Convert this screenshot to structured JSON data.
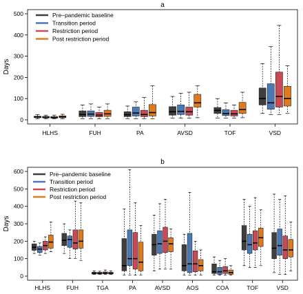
{
  "chart_data": [
    {
      "type": "box",
      "title": "a",
      "xlabel": "",
      "ylabel": "Days",
      "ylim": [
        0,
        500
      ],
      "yticks": [
        0,
        100,
        200,
        300,
        400,
        500
      ],
      "groups": [
        "HLHS",
        "FUH",
        "PA",
        "AVSD",
        "TOF",
        "VSD"
      ],
      "legend_position": "top-left",
      "series": [
        {
          "name": "Pre–pandemic baseline",
          "color": "#3f3f3f",
          "boxes": [
            {
              "min": 5,
              "q1": 10,
              "median": 13,
              "q3": 17,
              "max": 24
            },
            {
              "min": 5,
              "q1": 15,
              "median": 25,
              "q3": 42,
              "max": 70
            },
            {
              "min": 5,
              "q1": 15,
              "median": 24,
              "q3": 38,
              "max": 65
            },
            {
              "min": 8,
              "q1": 22,
              "median": 38,
              "q3": 62,
              "max": 110
            },
            {
              "min": 8,
              "q1": 30,
              "median": 44,
              "q3": 58,
              "max": 100
            },
            {
              "min": 30,
              "q1": 70,
              "median": 100,
              "q3": 150,
              "max": 265
            }
          ]
        },
        {
          "name": "Transition period",
          "color": "#4a79b5",
          "boxes": [
            {
              "min": 5,
              "q1": 9,
              "median": 12,
              "q3": 16,
              "max": 22
            },
            {
              "min": 5,
              "q1": 16,
              "median": 27,
              "q3": 42,
              "max": 75
            },
            {
              "min": 5,
              "q1": 18,
              "median": 32,
              "q3": 60,
              "max": 85
            },
            {
              "min": 8,
              "q1": 25,
              "median": 40,
              "q3": 70,
              "max": 125
            },
            {
              "min": 8,
              "q1": 20,
              "median": 30,
              "q3": 48,
              "max": 80
            },
            {
              "min": 25,
              "q1": 50,
              "median": 80,
              "q3": 170,
              "max": 345
            }
          ]
        },
        {
          "name": "Restriction period",
          "color": "#c94a56",
          "boxes": [
            {
              "min": 5,
              "q1": 8,
              "median": 11,
              "q3": 15,
              "max": 22
            },
            {
              "min": 5,
              "q1": 14,
              "median": 22,
              "q3": 35,
              "max": 60
            },
            {
              "min": 5,
              "q1": 15,
              "median": 25,
              "q3": 45,
              "max": 105
            },
            {
              "min": 8,
              "q1": 22,
              "median": 38,
              "q3": 60,
              "max": 130
            },
            {
              "min": 8,
              "q1": 18,
              "median": 28,
              "q3": 45,
              "max": 70
            },
            {
              "min": 25,
              "q1": 60,
              "median": 110,
              "q3": 225,
              "max": 445
            }
          ]
        },
        {
          "name": "Post restriction period",
          "color": "#df7a1f",
          "boxes": [
            {
              "min": 5,
              "q1": 10,
              "median": 14,
              "q3": 19,
              "max": 26
            },
            {
              "min": 5,
              "q1": 16,
              "median": 28,
              "q3": 45,
              "max": 75
            },
            {
              "min": 5,
              "q1": 18,
              "median": 34,
              "q3": 72,
              "max": 160
            },
            {
              "min": 10,
              "q1": 60,
              "median": 80,
              "q3": 120,
              "max": 160
            },
            {
              "min": 10,
              "q1": 30,
              "median": 48,
              "q3": 82,
              "max": 130
            },
            {
              "min": 30,
              "q1": 65,
              "median": 100,
              "q3": 158,
              "max": 255
            }
          ]
        }
      ]
    },
    {
      "type": "box",
      "title": "b",
      "xlabel": "",
      "ylabel": "Days",
      "ylim": [
        0,
        600
      ],
      "yticks": [
        0,
        100,
        200,
        300,
        400,
        500,
        600
      ],
      "groups": [
        "HLHS",
        "FUH",
        "TGA",
        "PA",
        "AVSD",
        "AOS",
        "COA",
        "TOF",
        "VSD"
      ],
      "legend_position": "top-left",
      "series": [
        {
          "name": "Pre–pandemic baseline",
          "color": "#3f3f3f",
          "boxes": [
            {
              "min": 130,
              "q1": 148,
              "median": 165,
              "q3": 185,
              "max": 200
            },
            {
              "min": 130,
              "q1": 175,
              "median": 205,
              "q3": 245,
              "max": 300
            },
            {
              "min": 10,
              "q1": 12,
              "median": 17,
              "q3": 22,
              "max": 30
            },
            {
              "min": 5,
              "q1": 30,
              "median": 60,
              "q3": 215,
              "max": 385
            },
            {
              "min": 30,
              "q1": 120,
              "median": 180,
              "q3": 240,
              "max": 350
            },
            {
              "min": 5,
              "q1": 30,
              "median": 60,
              "q3": 180,
              "max": 240
            },
            {
              "min": 5,
              "q1": 15,
              "median": 25,
              "q3": 70,
              "max": 110
            },
            {
              "min": 60,
              "q1": 150,
              "median": 200,
              "q3": 290,
              "max": 440
            },
            {
              "min": 20,
              "q1": 100,
              "median": 160,
              "q3": 250,
              "max": 470
            }
          ]
        },
        {
          "name": "Transition period",
          "color": "#4a79b5",
          "boxes": [
            {
              "min": 120,
              "q1": 135,
              "median": 155,
              "q3": 170,
              "max": 190
            },
            {
              "min": 100,
              "q1": 165,
              "median": 210,
              "q3": 230,
              "max": 265
            },
            {
              "min": 10,
              "q1": 12,
              "median": 16,
              "q3": 22,
              "max": 28
            },
            {
              "min": 5,
              "q1": 60,
              "median": 100,
              "q3": 265,
              "max": 610
            },
            {
              "min": 40,
              "q1": 130,
              "median": 185,
              "q3": 260,
              "max": 415
            },
            {
              "min": 5,
              "q1": 20,
              "median": 70,
              "q3": 245,
              "max": 480
            },
            {
              "min": 5,
              "q1": 10,
              "median": 25,
              "q3": 50,
              "max": 90
            },
            {
              "min": 50,
              "q1": 130,
              "median": 180,
              "q3": 240,
              "max": 400
            },
            {
              "min": 10,
              "q1": 120,
              "median": 175,
              "q3": 270,
              "max": 440
            }
          ]
        },
        {
          "name": "Restriction period",
          "color": "#c94a56",
          "boxes": [
            {
              "min": 130,
              "q1": 150,
              "median": 175,
              "q3": 200,
              "max": 225
            },
            {
              "min": 100,
              "q1": 155,
              "median": 190,
              "q3": 265,
              "max": 430
            },
            {
              "min": 10,
              "q1": 13,
              "median": 18,
              "q3": 24,
              "max": 35
            },
            {
              "min": 5,
              "q1": 40,
              "median": 100,
              "q3": 250,
              "max": 420
            },
            {
              "min": 40,
              "q1": 135,
              "median": 200,
              "q3": 280,
              "max": 440
            },
            {
              "min": 5,
              "q1": 25,
              "median": 70,
              "q3": 145,
              "max": 200
            },
            {
              "min": 5,
              "q1": 15,
              "median": 30,
              "q3": 55,
              "max": 100
            },
            {
              "min": 50,
              "q1": 150,
              "median": 190,
              "q3": 260,
              "max": 450
            },
            {
              "min": 10,
              "q1": 100,
              "median": 150,
              "q3": 230,
              "max": 460
            }
          ]
        },
        {
          "name": "Post restriction period",
          "color": "#df7a1f",
          "boxes": [
            {
              "min": 140,
              "q1": 160,
              "median": 195,
              "q3": 235,
              "max": 310
            },
            {
              "min": 90,
              "q1": 160,
              "median": 200,
              "q3": 265,
              "max": 420
            },
            {
              "min": 10,
              "q1": 12,
              "median": 17,
              "q3": 22,
              "max": 30
            },
            {
              "min": 5,
              "q1": 30,
              "median": 80,
              "q3": 195,
              "max": 290
            },
            {
              "min": 40,
              "q1": 140,
              "median": 185,
              "q3": 220,
              "max": 270
            },
            {
              "min": 5,
              "q1": 30,
              "median": 60,
              "q3": 95,
              "max": 150
            },
            {
              "min": 5,
              "q1": 10,
              "median": 20,
              "q3": 35,
              "max": 60
            },
            {
              "min": 60,
              "q1": 170,
              "median": 220,
              "q3": 275,
              "max": 380
            },
            {
              "min": 30,
              "q1": 110,
              "median": 150,
              "q3": 210,
              "max": 310
            }
          ]
        }
      ]
    }
  ]
}
